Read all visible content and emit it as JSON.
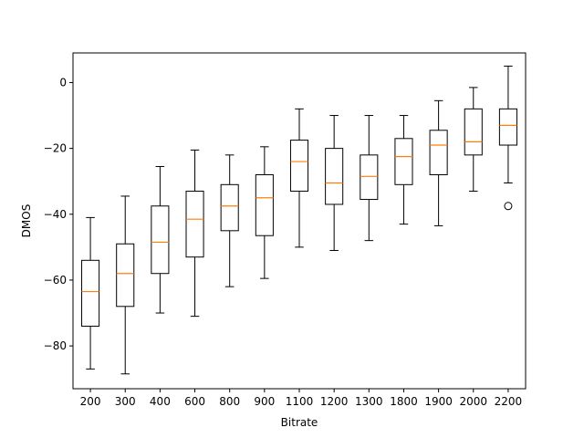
{
  "chart_data": {
    "type": "boxplot",
    "title": "",
    "xlabel": "Bitrate",
    "ylabel": "DMOS",
    "ylim": [
      -93,
      9
    ],
    "yticks": [
      0,
      -20,
      -40,
      -60,
      -80
    ],
    "yticklabels": [
      "0",
      "−20",
      "−40",
      "−60",
      "−80"
    ],
    "grid": false,
    "legend": "none",
    "colors": {
      "box": "#000000",
      "median": "#ff7f0e",
      "background": "#ffffff"
    },
    "categories": [
      "200",
      "300",
      "400",
      "600",
      "800",
      "900",
      "1100",
      "1200",
      "1300",
      "1800",
      "1900",
      "2000",
      "2200"
    ],
    "boxes": [
      {
        "category": "200",
        "whisker_low": -87,
        "q1": -74,
        "median": -63.5,
        "q3": -54,
        "whisker_high": -41,
        "outliers": []
      },
      {
        "category": "300",
        "whisker_low": -88.5,
        "q1": -68,
        "median": -58,
        "q3": -49,
        "whisker_high": -34.5,
        "outliers": []
      },
      {
        "category": "400",
        "whisker_low": -70,
        "q1": -58,
        "median": -48.5,
        "q3": -37.5,
        "whisker_high": -25.5,
        "outliers": []
      },
      {
        "category": "600",
        "whisker_low": -71,
        "q1": -53,
        "median": -41.5,
        "q3": -33,
        "whisker_high": -20.5,
        "outliers": []
      },
      {
        "category": "800",
        "whisker_low": -62,
        "q1": -45,
        "median": -37.5,
        "q3": -31,
        "whisker_high": -22,
        "outliers": []
      },
      {
        "category": "900",
        "whisker_low": -59.5,
        "q1": -46.5,
        "median": -35,
        "q3": -28,
        "whisker_high": -19.5,
        "outliers": []
      },
      {
        "category": "1100",
        "whisker_low": -50,
        "q1": -33,
        "median": -24,
        "q3": -17.5,
        "whisker_high": -8,
        "outliers": []
      },
      {
        "category": "1200",
        "whisker_low": -51,
        "q1": -37,
        "median": -30.5,
        "q3": -20,
        "whisker_high": -10,
        "outliers": []
      },
      {
        "category": "1300",
        "whisker_low": -48,
        "q1": -35.5,
        "median": -28.5,
        "q3": -22,
        "whisker_high": -10,
        "outliers": []
      },
      {
        "category": "1800",
        "whisker_low": -43,
        "q1": -31,
        "median": -22.5,
        "q3": -17,
        "whisker_high": -10,
        "outliers": []
      },
      {
        "category": "1900",
        "whisker_low": -43.5,
        "q1": -28,
        "median": -19,
        "q3": -14.5,
        "whisker_high": -5.5,
        "outliers": []
      },
      {
        "category": "2000",
        "whisker_low": -33,
        "q1": -22,
        "median": -18,
        "q3": -8,
        "whisker_high": -1.5,
        "outliers": []
      },
      {
        "category": "2200",
        "whisker_low": -30.5,
        "q1": -19,
        "median": -13,
        "q3": -8,
        "whisker_high": 5,
        "outliers": [
          -37.5
        ]
      }
    ]
  }
}
